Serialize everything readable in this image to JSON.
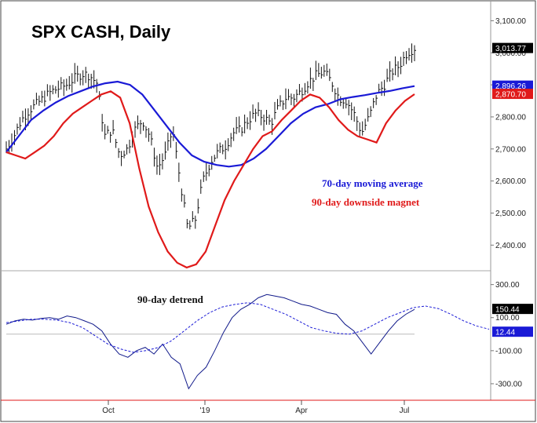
{
  "chart_data": {
    "type": "line",
    "title": "SPX CASH, Daily",
    "x_ticks": [
      "Oct",
      "'19",
      "Apr",
      "Jul"
    ],
    "price_panel": {
      "y_ticks": [
        "3,100.00",
        "3,000.00",
        "2,900.00",
        "2,800.00",
        "2,700.00",
        "2,600.00",
        "2,500.00",
        "2,400.00"
      ],
      "y_tick_values": [
        3100,
        3000,
        2900,
        2800,
        2700,
        2600,
        2500,
        2400
      ],
      "ylim": [
        2320,
        3150
      ],
      "price_closes": [
        2700,
        2740,
        2790,
        2820,
        2840,
        2860,
        2880,
        2890,
        2900,
        2920,
        2935,
        2930,
        2905,
        2740,
        2760,
        2680,
        2700,
        2760,
        2790,
        2740,
        2640,
        2680,
        2760,
        2600,
        2450,
        2480,
        2600,
        2660,
        2690,
        2710,
        2750,
        2760,
        2790,
        2810,
        2800,
        2780,
        2830,
        2860,
        2860,
        2880,
        2910,
        2930,
        2940,
        2910,
        2860,
        2850,
        2810,
        2750,
        2800,
        2870,
        2900,
        2940,
        2960,
        3000,
        3015
      ],
      "ma70": [
        2690,
        2740,
        2790,
        2820,
        2845,
        2865,
        2880,
        2895,
        2905,
        2910,
        2900,
        2870,
        2820,
        2770,
        2720,
        2680,
        2660,
        2650,
        2645,
        2650,
        2670,
        2700,
        2740,
        2780,
        2810,
        2830,
        2840,
        2855,
        2862,
        2868,
        2875,
        2881,
        2889,
        2896
      ],
      "magnet90": [
        2690,
        2680,
        2670,
        2690,
        2710,
        2740,
        2780,
        2810,
        2830,
        2850,
        2870,
        2880,
        2860,
        2780,
        2640,
        2520,
        2440,
        2380,
        2345,
        2330,
        2340,
        2380,
        2460,
        2540,
        2600,
        2650,
        2700,
        2740,
        2755,
        2790,
        2820,
        2850,
        2870,
        2860,
        2830,
        2790,
        2760,
        2740,
        2730,
        2720,
        2780,
        2820,
        2850,
        2871
      ],
      "legend": [
        {
          "text": "70-day moving average",
          "color": "#1a1ad6"
        },
        {
          "text": "90-day downside magnet",
          "color": "#e01a1a"
        }
      ],
      "tags": [
        {
          "text": "3,013.77",
          "bg": "#000000",
          "value": 3013.77
        },
        {
          "text": "2,896.26",
          "bg": "#1a1ad6",
          "value": 2896.26
        },
        {
          "text": "2,870.70",
          "bg": "#e01a1a",
          "value": 2870.7
        }
      ]
    },
    "detrend_panel": {
      "label": "90-day detrend",
      "y_ticks": [
        "300.00",
        "100.00",
        "-100.00",
        "-300.00"
      ],
      "y_tick_values": [
        300,
        100,
        -100,
        -300
      ],
      "ylim": [
        -400,
        360
      ],
      "detrend": [
        60,
        80,
        90,
        85,
        95,
        100,
        90,
        110,
        100,
        80,
        60,
        20,
        -60,
        -120,
        -140,
        -100,
        -80,
        -120,
        -60,
        -140,
        -180,
        -330,
        -250,
        -200,
        -100,
        10,
        100,
        150,
        180,
        220,
        240,
        230,
        220,
        200,
        180,
        170,
        150,
        130,
        120,
        60,
        20,
        -50,
        -120,
        -50,
        20,
        80,
        120,
        150
      ],
      "cycle_projection": [
        70,
        80,
        90,
        90,
        85,
        70,
        40,
        -10,
        -60,
        -90,
        -110,
        -100,
        -80,
        -40,
        20,
        80,
        130,
        165,
        180,
        190,
        180,
        150,
        120,
        80,
        40,
        20,
        5,
        0,
        20,
        60,
        100,
        130,
        160,
        170,
        155,
        120,
        80,
        50,
        30
      ],
      "tags": [
        {
          "text": "150.44",
          "bg": "#000000",
          "value": 150.44
        },
        {
          "text": "12.44",
          "bg": "#1a1ad6",
          "value": 12.44
        }
      ]
    }
  }
}
